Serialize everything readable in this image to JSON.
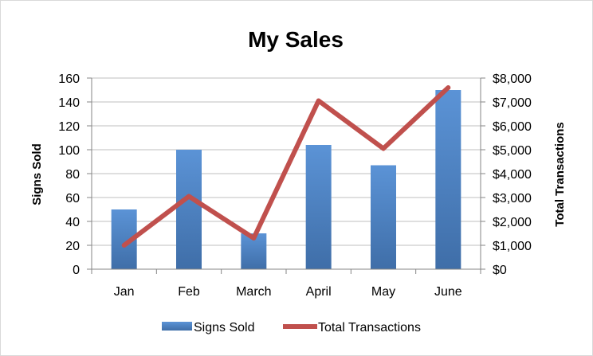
{
  "chart_data": {
    "type": "bar",
    "title": "My Sales",
    "categories": [
      "Jan",
      "Feb",
      "March",
      "April",
      "May",
      "June"
    ],
    "series": [
      {
        "name": "Signs Sold",
        "type": "bar",
        "axis": "left",
        "color": "#4a7ebb",
        "values": [
          50,
          100,
          30,
          104,
          87,
          150
        ]
      },
      {
        "name": "Total Transactions",
        "type": "line",
        "axis": "right",
        "color": "#c0504d",
        "values": [
          1000,
          3050,
          1300,
          7050,
          5050,
          7600
        ]
      }
    ],
    "ylabel": "Signs Sold",
    "ylim": [
      0,
      160
    ],
    "yticks": [
      "0",
      "20",
      "40",
      "60",
      "80",
      "100",
      "120",
      "140",
      "160"
    ],
    "y2label": "Total Transactions",
    "y2lim": [
      0,
      8000
    ],
    "y2ticks": [
      "$0",
      "$1,000",
      "$2,000",
      "$3,000",
      "$4,000",
      "$5,000",
      "$6,000",
      "$7,000",
      "$8,000"
    ],
    "grid": true,
    "legend": "bottom"
  }
}
